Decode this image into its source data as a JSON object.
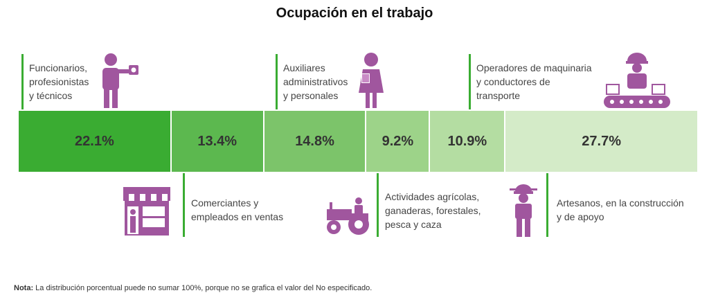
{
  "chart_data": {
    "type": "bar",
    "title": "Ocupación en el trabajo",
    "categories": [
      "Funcionarios, profesionistas y técnicos",
      "Comerciantes y empleados en ventas",
      "Auxiliares administrativos y personales",
      "Actividades agrícolas, ganaderas, forestales, pesca y caza",
      "Operadores de maquinaria y conductores de transporte",
      "Artesanos, en la construcción y de apoyo"
    ],
    "values": [
      22.1,
      13.4,
      14.8,
      9.2,
      10.9,
      27.7
    ],
    "value_labels": [
      "22.1%",
      "13.4%",
      "14.8%",
      "9.2%",
      "10.9%",
      "27.7%"
    ],
    "orientation": "stacked-horizontal-100",
    "colors": [
      "#3aac32",
      "#5cb84f",
      "#7cc46a",
      "#9dd389",
      "#b4dda2",
      "#d4ebc8"
    ]
  },
  "labels": [
    [
      "Funcionarios,",
      "profesionistas",
      "y técnicos"
    ],
    [
      "Comerciantes y",
      "empleados en ventas"
    ],
    [
      "Auxiliares",
      "administrativos",
      "y personales"
    ],
    [
      "Actividades agrícolas,",
      "ganaderas, forestales,",
      "pesca y caza"
    ],
    [
      "Operadores de maquinaria",
      "y conductores de",
      "transporte"
    ],
    [
      "Artesanos, en la construcción",
      "y de apoyo"
    ]
  ],
  "icons": {
    "color": "#a0569e",
    "names": [
      "professional-icon",
      "shop-icon",
      "office-worker-icon",
      "tractor-icon",
      "machine-operator-icon",
      "construction-worker-icon"
    ]
  },
  "note": {
    "label": "Nota:",
    "text": " La distribución porcentual puede no sumar 100%, porque no se grafica el valor del No especificado."
  }
}
